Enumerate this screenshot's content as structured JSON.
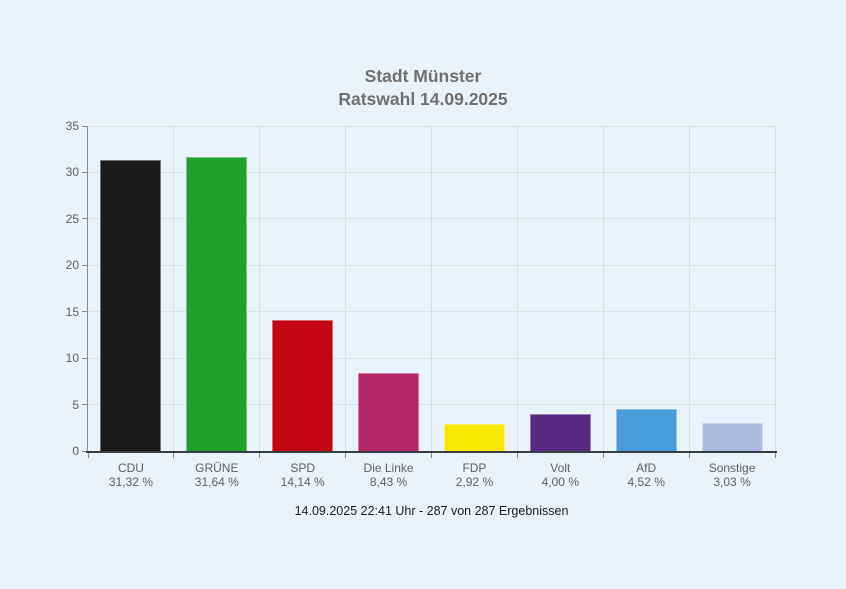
{
  "title": {
    "line1": "Stadt Münster",
    "line2": "Ratswahl 14.09.2025"
  },
  "footer": {
    "text": "14.09.2025 22:41 Uhr - 287 von 287 Ergebnissen"
  },
  "chart_data": {
    "type": "bar",
    "title": "Stadt Münster Ratswahl 14.09.2025",
    "categories": [
      "CDU",
      "GRÜNE",
      "SPD",
      "Die Linke",
      "FDP",
      "Volt",
      "AfD",
      "Sonstige"
    ],
    "values": [
      31.32,
      31.64,
      14.14,
      8.43,
      2.92,
      4.0,
      4.52,
      3.03
    ],
    "value_labels": [
      "31,32 %",
      "31,64 %",
      "14,14 %",
      "8,43 %",
      "2,92 %",
      "4,00 %",
      "4,52 %",
      "3,03 %"
    ],
    "bar_colors": [
      "#1a1a1a",
      "#21a12c",
      "#c20511",
      "#b32667",
      "#f8e700",
      "#572a82",
      "#4a9dd8",
      "#aebce2"
    ],
    "xlabel": "",
    "ylabel": "",
    "ylim": [
      0,
      35
    ],
    "yticks": [
      0,
      5,
      10,
      15,
      20,
      25,
      30,
      35
    ],
    "grid": true,
    "legend_position": "none",
    "subtitle": "14.09.2025 22:41 Uhr - 287 von 287 Ergebnissen"
  },
  "colors": {
    "background": "#e9f3fb",
    "grid": "#d8e1e9",
    "y_axis_line": "#878f96",
    "x_axis_line": "#383d44",
    "tick_label_text": "#5c6166",
    "title_text": "#6f6f6f",
    "footer_text": "#1b1b1b"
  }
}
